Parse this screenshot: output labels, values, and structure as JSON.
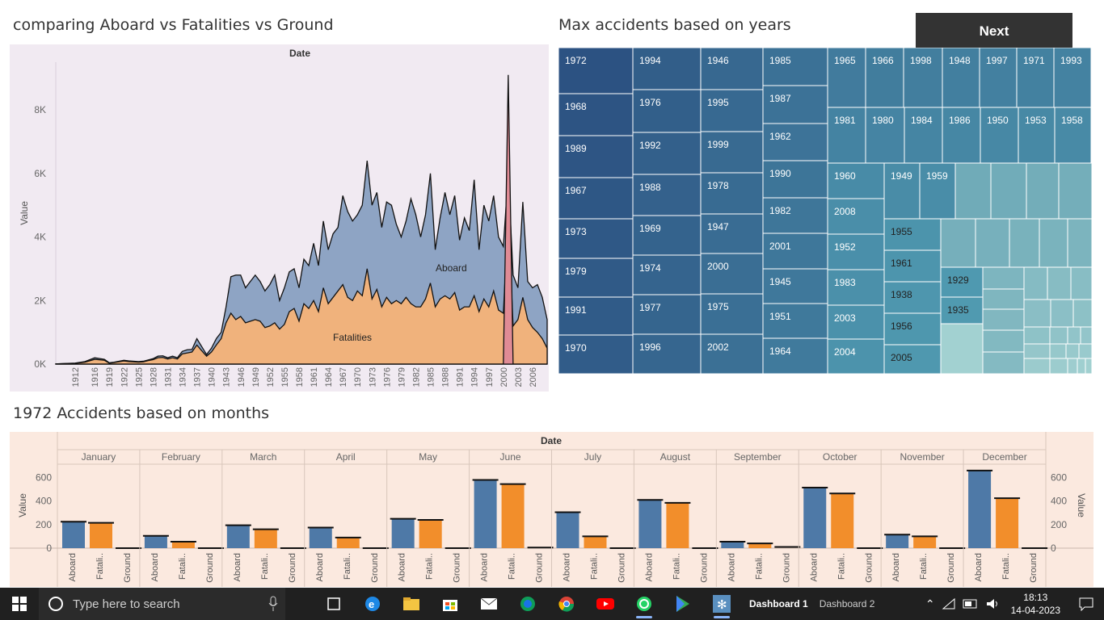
{
  "area_chart": {
    "title": "comparing Aboard vs Fatalities vs Ground",
    "header": "Date",
    "ylabel": "Value",
    "y_ticks": [
      "0K",
      "2K",
      "4K",
      "6K",
      "8K"
    ],
    "x_ticks": [
      "1912",
      "1916",
      "1919",
      "1922",
      "1925",
      "1928",
      "1931",
      "1934",
      "1937",
      "1940",
      "1943",
      "1946",
      "1949",
      "1952",
      "1955",
      "1958",
      "1961",
      "1964",
      "1967",
      "1970",
      "1973",
      "1976",
      "1979",
      "1982",
      "1985",
      "1988",
      "1991",
      "1994",
      "1997",
      "2000",
      "2003",
      "2006"
    ],
    "series_labels": {
      "aboard": "Aboard",
      "fatalities": "Fatalities"
    }
  },
  "treemap": {
    "title": "Max accidents based on years",
    "cells": [
      "1972",
      "1968",
      "1989",
      "1967",
      "1973",
      "1979",
      "1991",
      "1970",
      "1994",
      "1976",
      "1992",
      "1988",
      "1969",
      "1974",
      "1977",
      "1996",
      "1946",
      "1995",
      "1999",
      "1978",
      "1947",
      "2000",
      "1975",
      "2002",
      "1985",
      "1987",
      "1962",
      "1990",
      "1982",
      "2001",
      "1945",
      "1951",
      "1964",
      "1965",
      "1966",
      "1998",
      "1948",
      "1997",
      "1971",
      "1993",
      "1981",
      "1980",
      "1984",
      "1986",
      "1950",
      "1953",
      "1958",
      "1960",
      "1949",
      "1959",
      "2008",
      "1952",
      "1983",
      "2003",
      "2004",
      "1955",
      "1961",
      "1938",
      "1956",
      "2005",
      "1929",
      "1935"
    ]
  },
  "bar_chart": {
    "title": "1972 Accidents based on months",
    "header": "Date",
    "ylabel": "Value",
    "y_ticks": [
      "0",
      "200",
      "400",
      "600"
    ],
    "months": [
      "January",
      "February",
      "March",
      "April",
      "May",
      "June",
      "July",
      "August",
      "September",
      "October",
      "November",
      "December"
    ],
    "measures": [
      "Aboard",
      "Fatali..",
      "Ground"
    ]
  },
  "next_button": "Next",
  "taskbar": {
    "search_placeholder": "Type here to search",
    "tasks": [
      "Dashboard 1",
      "Dashboard 2"
    ],
    "time": "18:13",
    "date": "14-04-2023"
  },
  "colors": {
    "aboard": "#8ea4c4",
    "fatalities": "#f0b27c",
    "ground": "#e08b95",
    "bar_aboard": "#4e79a7",
    "bar_fatalities": "#f28e2b"
  },
  "chart_data": [
    {
      "type": "area",
      "title": "comparing Aboard vs Fatalities vs Ground",
      "xlabel": "Date",
      "ylabel": "Value",
      "ylim": [
        0,
        9500
      ],
      "x": [
        1908,
        1912,
        1914,
        1916,
        1918,
        1919,
        1920,
        1922,
        1923,
        1925,
        1926,
        1927,
        1928,
        1929,
        1930,
        1931,
        1932,
        1933,
        1934,
        1935,
        1936,
        1937,
        1938,
        1939,
        1940,
        1941,
        1942,
        1943,
        1944,
        1945,
        1946,
        1947,
        1948,
        1949,
        1950,
        1951,
        1952,
        1953,
        1954,
        1955,
        1956,
        1957,
        1958,
        1959,
        1960,
        1961,
        1962,
        1963,
        1964,
        1965,
        1966,
        1967,
        1968,
        1969,
        1970,
        1971,
        1972,
        1973,
        1974,
        1975,
        1976,
        1977,
        1978,
        1979,
        1980,
        1981,
        1982,
        1983,
        1984,
        1985,
        1986,
        1987,
        1988,
        1989,
        1990,
        1991,
        1992,
        1993,
        1994,
        1995,
        1996,
        1997,
        1998,
        1999,
        2000,
        2001,
        2002,
        2003,
        2004,
        2005,
        2006,
        2007,
        2008,
        2009
      ],
      "series": [
        {
          "name": "Aboard",
          "values": [
            5,
            30,
            80,
            200,
            150,
            40,
            60,
            120,
            100,
            80,
            90,
            130,
            170,
            250,
            260,
            200,
            250,
            200,
            400,
            450,
            460,
            800,
            550,
            300,
            500,
            800,
            1000,
            1800,
            2750,
            2800,
            2800,
            2400,
            2600,
            2800,
            2600,
            2300,
            2500,
            2800,
            2000,
            2400,
            2900,
            3000,
            2400,
            3300,
            3100,
            3800,
            3100,
            4500,
            3600,
            4100,
            4300,
            5300,
            4800,
            4500,
            4700,
            5000,
            6400,
            5000,
            5400,
            4300,
            5100,
            5000,
            4400,
            4000,
            4500,
            5200,
            4700,
            4000,
            4700,
            6000,
            3600,
            4600,
            5400,
            4700,
            5300,
            3900,
            4600,
            4200,
            5800,
            3600,
            5000,
            4500,
            5300,
            4000,
            3700,
            6000,
            2800,
            2400,
            5100,
            2600,
            2400,
            2500,
            2100,
            1400
          ]
        },
        {
          "name": "Fatalities",
          "values": [
            5,
            25,
            60,
            150,
            120,
            30,
            50,
            100,
            80,
            60,
            70,
            110,
            140,
            200,
            210,
            160,
            200,
            160,
            320,
            350,
            380,
            600,
            420,
            250,
            380,
            600,
            800,
            1300,
            1600,
            1400,
            1500,
            1300,
            1350,
            1400,
            1350,
            1150,
            1200,
            1300,
            1100,
            1250,
            1650,
            1750,
            1350,
            1900,
            1750,
            2000,
            1650,
            2400,
            1900,
            2100,
            2300,
            2500,
            2100,
            2000,
            2300,
            2150,
            3000,
            2050,
            2350,
            1800,
            2100,
            1900,
            2000,
            1900,
            2100,
            1900,
            1800,
            1800,
            2050,
            2550,
            1800,
            2050,
            2150,
            2050,
            2250,
            1700,
            1800,
            1800,
            2150,
            1650,
            2050,
            1800,
            2300,
            1700,
            1600,
            4700,
            1200,
            1400,
            2100,
            1400,
            1150,
            1000,
            800,
            500
          ]
        },
        {
          "name": "Ground",
          "values": [
            0,
            0,
            0,
            0,
            0,
            0,
            0,
            0,
            0,
            0,
            0,
            0,
            0,
            0,
            0,
            0,
            0,
            0,
            0,
            0,
            0,
            0,
            0,
            0,
            0,
            0,
            0,
            0,
            0,
            0,
            0,
            0,
            0,
            0,
            0,
            0,
            0,
            0,
            0,
            0,
            0,
            0,
            0,
            0,
            0,
            0,
            0,
            0,
            0,
            0,
            0,
            0,
            0,
            0,
            0,
            0,
            0,
            0,
            0,
            0,
            0,
            0,
            0,
            0,
            0,
            0,
            0,
            0,
            0,
            0,
            0,
            0,
            0,
            0,
            0,
            0,
            0,
            0,
            0,
            0,
            0,
            0,
            0,
            0,
            0,
            9100,
            0,
            0,
            0,
            0,
            0,
            0,
            0,
            0
          ]
        }
      ]
    },
    {
      "type": "bar",
      "title": "1972 Accidents based on months",
      "xlabel": "Date",
      "ylabel": "Value",
      "ylim": [
        0,
        700
      ],
      "categories": [
        "January",
        "February",
        "March",
        "April",
        "May",
        "June",
        "July",
        "August",
        "September",
        "October",
        "November",
        "December"
      ],
      "series": [
        {
          "name": "Aboard",
          "values": [
            225,
            105,
            195,
            175,
            250,
            580,
            305,
            410,
            55,
            515,
            115,
            660
          ]
        },
        {
          "name": "Fatalities",
          "values": [
            215,
            55,
            160,
            90,
            240,
            545,
            100,
            385,
            40,
            465,
            100,
            425
          ]
        },
        {
          "name": "Ground",
          "values": [
            0,
            0,
            0,
            0,
            0,
            5,
            0,
            0,
            10,
            0,
            0,
            0
          ]
        }
      ]
    }
  ]
}
